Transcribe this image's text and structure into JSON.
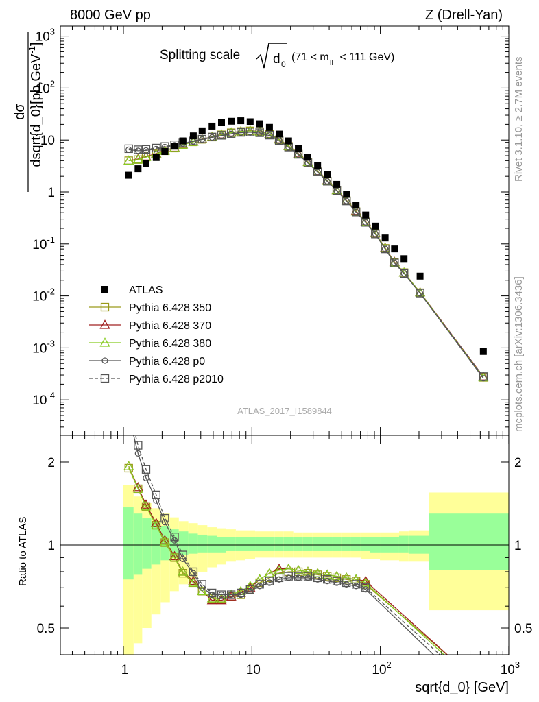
{
  "header": {
    "left": "8000 GeV pp",
    "right": "Z (Drell-Yan)"
  },
  "side_labels": {
    "rivet": "Rivet 3.1.10, ≥ 2.7M events",
    "mcplots": "mcplots.cern.ch [arXiv:1306.3436]"
  },
  "chart_data": [
    {
      "type": "scatter",
      "title": "Splitting scale √d0 (71 < m_ll < 111 GeV)",
      "title_parts": {
        "text": "Splitting scale",
        "symbol": "d",
        "subscript": "0",
        "range": "(71 < m",
        "range_sub": "ll",
        "range_end": " < 111 GeV)"
      },
      "ylabel": "dσ/dsqrt{d_0} [pb,GeV^-1]",
      "ylabel_parts": {
        "numerator": "dσ",
        "denominator": "dsqrt{d_0}",
        "unit": "[pb,GeV",
        "unit_exp": "-1",
        "unit_end": "]"
      },
      "xlabel": "sqrt{d_0} [GeV]",
      "xscale": "log",
      "yscale": "log",
      "xlim": [
        0.35,
        1000
      ],
      "ylim": [
        2.5e-05,
        1500
      ],
      "x_ticks": [
        "1",
        "10",
        "10^2",
        "10^3"
      ],
      "y_ticks": [
        "10^-4",
        "10^-3",
        "10^-2",
        "10^-1",
        "1",
        "10",
        "10^2",
        "10^3"
      ],
      "watermark": "ATLAS_2017_I1589844",
      "legend_position": "lower-left",
      "series": [
        {
          "name": "ATLAS",
          "style": "filled-square",
          "color": "#000000",
          "x": [
            1.1,
            1.3,
            1.5,
            1.8,
            2.1,
            2.5,
            2.9,
            3.5,
            4.1,
            4.9,
            5.8,
            6.9,
            8.2,
            9.7,
            11.5,
            13.7,
            16.3,
            19.3,
            23.0,
            27.3,
            32.5,
            38.6,
            45.8,
            54.5,
            64.7,
            76.9,
            91.4,
            109,
            129,
            153,
            204,
            634
          ],
          "y": [
            2.1,
            2.8,
            3.5,
            4.6,
            6.0,
            7.6,
            9.6,
            12.0,
            15.0,
            18.5,
            21.5,
            23.0,
            23.5,
            22.5,
            20.5,
            17.5,
            13.0,
            9.6,
            6.9,
            4.7,
            3.2,
            2.15,
            1.4,
            0.9,
            0.56,
            0.36,
            0.22,
            0.13,
            0.08,
            0.052,
            0.024,
            0.00085
          ]
        },
        {
          "name": "Pythia 6.428 350",
          "style": "open-square-line",
          "color": "#9a9a1a",
          "x": [
            1.1,
            1.3,
            1.5,
            1.8,
            2.1,
            2.5,
            2.9,
            3.5,
            4.1,
            4.9,
            5.8,
            6.9,
            8.2,
            9.7,
            11.5,
            13.7,
            16.3,
            19.3,
            23.0,
            27.3,
            32.5,
            38.6,
            45.8,
            54.5,
            64.7,
            76.9,
            91.4,
            109,
            129,
            153,
            204,
            634
          ],
          "y": [
            4.0,
            4.2,
            4.7,
            5.4,
            6.2,
            7.0,
            8.1,
            9.2,
            10.3,
            11.4,
            12.6,
            13.8,
            14.6,
            15.0,
            14.5,
            12.9,
            10.1,
            7.5,
            5.4,
            3.7,
            2.45,
            1.62,
            1.06,
            0.68,
            0.42,
            0.265,
            0.158,
            0.082,
            0.044,
            0.028,
            0.0115,
            0.00027
          ]
        },
        {
          "name": "Pythia 6.428 370",
          "style": "open-triangle-line",
          "color": "#a02020",
          "x": [
            1.1,
            1.3,
            1.5,
            1.8,
            2.1,
            2.5,
            2.9,
            3.5,
            4.1,
            4.9,
            5.8,
            6.9,
            8.2,
            9.7,
            11.5,
            13.7,
            16.3,
            19.3,
            23.0,
            27.3,
            32.5,
            38.6,
            45.8,
            54.5,
            64.7,
            76.9,
            91.4,
            109,
            129,
            153,
            204,
            634
          ],
          "y": [
            4.0,
            4.3,
            4.8,
            5.5,
            6.3,
            7.1,
            8.2,
            9.3,
            10.4,
            11.5,
            12.7,
            13.9,
            14.7,
            15.1,
            14.6,
            13.0,
            10.3,
            7.7,
            5.5,
            3.8,
            2.5,
            1.65,
            1.08,
            0.69,
            0.43,
            0.27,
            0.162,
            0.084,
            0.045,
            0.028,
            0.0117,
            0.00028
          ]
        },
        {
          "name": "Pythia 6.428 380",
          "style": "open-triangle-line",
          "color": "#88cc22",
          "x": [
            1.1,
            1.3,
            1.5,
            1.8,
            2.1,
            2.5,
            2.9,
            3.5,
            4.1,
            4.9,
            5.8,
            6.9,
            8.2,
            9.7,
            11.5,
            13.7,
            16.3,
            19.3,
            23.0,
            27.3,
            32.5,
            38.6,
            45.8,
            54.5,
            64.7,
            76.9,
            91.4,
            109,
            129,
            153,
            204,
            634
          ],
          "y": [
            4.0,
            4.2,
            4.7,
            5.4,
            6.2,
            7.0,
            8.1,
            9.2,
            10.3,
            11.4,
            12.6,
            13.8,
            14.6,
            15.0,
            14.5,
            12.9,
            10.2,
            7.6,
            5.4,
            3.75,
            2.48,
            1.63,
            1.07,
            0.68,
            0.42,
            0.266,
            0.16,
            0.083,
            0.044,
            0.028,
            0.0116,
            0.00027
          ]
        },
        {
          "name": "Pythia 6.428 p0",
          "style": "open-circle-line",
          "color": "#555555",
          "x": [
            1.1,
            1.3,
            1.5,
            1.8,
            2.1,
            2.5,
            2.9,
            3.5,
            4.1,
            4.9,
            5.8,
            6.9,
            8.2,
            9.7,
            11.5,
            13.7,
            16.3,
            19.3,
            23.0,
            27.3,
            32.5,
            38.6,
            45.8,
            54.5,
            64.7,
            76.9,
            91.4,
            109,
            129,
            153,
            204,
            634
          ],
          "y": [
            6.5,
            6.2,
            6.3,
            6.7,
            7.3,
            7.9,
            8.6,
            9.4,
            10.2,
            11.2,
            12.1,
            13.1,
            13.8,
            14.1,
            13.6,
            12.2,
            9.6,
            7.2,
            5.2,
            3.6,
            2.4,
            1.6,
            1.05,
            0.67,
            0.41,
            0.26,
            0.155,
            0.08,
            0.043,
            0.027,
            0.0112,
            0.00026
          ]
        },
        {
          "name": "Pythia 6.428 p2010",
          "style": "open-square-dashed",
          "color": "#555555",
          "x": [
            1.1,
            1.3,
            1.5,
            1.8,
            2.1,
            2.5,
            2.9,
            3.5,
            4.1,
            4.9,
            5.8,
            6.9,
            8.2,
            9.7,
            11.5,
            13.7,
            16.3,
            19.3,
            23.0,
            27.3,
            32.5,
            38.6,
            45.8,
            54.5,
            64.7,
            76.9,
            91.4,
            109,
            129,
            153,
            204,
            634
          ],
          "y": [
            6.8,
            6.5,
            6.6,
            7.0,
            7.5,
            8.1,
            8.8,
            9.6,
            10.4,
            11.4,
            12.3,
            13.3,
            14.0,
            14.3,
            13.8,
            12.4,
            9.8,
            7.3,
            5.3,
            3.65,
            2.43,
            1.61,
            1.06,
            0.67,
            0.41,
            0.26,
            0.155,
            0.08,
            0.043,
            0.027,
            0.0113,
            0.00028
          ]
        }
      ]
    },
    {
      "type": "line",
      "ylabel": "Ratio to ATLAS",
      "xscale": "log",
      "xlim": [
        0.35,
        1000
      ],
      "ylim": [
        0.4,
        2.35
      ],
      "y_ticks": [
        "0.5",
        "1",
        "2"
      ],
      "reference_line": 1,
      "bands": {
        "bin_edges": [
          1.0,
          1.2,
          1.4,
          1.65,
          1.95,
          2.3,
          2.7,
          3.2,
          3.8,
          4.5,
          5.35,
          6.3,
          7.5,
          8.9,
          10.6,
          12.6,
          15.0,
          17.7,
          21.0,
          25.0,
          29.7,
          35.3,
          42.0,
          49.8,
          59.2,
          70.3,
          83.5,
          99.3,
          118,
          140,
          166,
          240,
          1000
        ],
        "inner_up": [
          1.37,
          1.3,
          1.25,
          1.21,
          1.17,
          1.14,
          1.12,
          1.1,
          1.09,
          1.08,
          1.07,
          1.07,
          1.07,
          1.07,
          1.07,
          1.07,
          1.07,
          1.07,
          1.07,
          1.07,
          1.07,
          1.07,
          1.07,
          1.07,
          1.07,
          1.07,
          1.07,
          1.07,
          1.07,
          1.08,
          1.08,
          1.3
        ],
        "inner_down": [
          0.75,
          0.78,
          0.82,
          0.85,
          0.88,
          0.9,
          0.92,
          0.93,
          0.94,
          0.94,
          0.94,
          0.95,
          0.95,
          0.95,
          0.95,
          0.95,
          0.95,
          0.95,
          0.95,
          0.95,
          0.95,
          0.95,
          0.95,
          0.95,
          0.95,
          0.95,
          0.94,
          0.94,
          0.94,
          0.94,
          0.93,
          0.81
        ],
        "outer_up": [
          1.65,
          1.5,
          1.42,
          1.36,
          1.3,
          1.26,
          1.22,
          1.2,
          1.18,
          1.16,
          1.15,
          1.14,
          1.13,
          1.13,
          1.12,
          1.12,
          1.12,
          1.12,
          1.11,
          1.11,
          1.11,
          1.11,
          1.11,
          1.11,
          1.11,
          1.11,
          1.11,
          1.11,
          1.11,
          1.12,
          1.13,
          1.55
        ],
        "outer_down": [
          0.37,
          0.44,
          0.5,
          0.56,
          0.62,
          0.68,
          0.72,
          0.76,
          0.8,
          0.83,
          0.85,
          0.87,
          0.88,
          0.89,
          0.9,
          0.9,
          0.9,
          0.9,
          0.9,
          0.9,
          0.9,
          0.9,
          0.9,
          0.9,
          0.9,
          0.89,
          0.89,
          0.88,
          0.88,
          0.87,
          0.87,
          0.58
        ],
        "inner_color": "#99ff99",
        "outer_color": "#ffff99"
      },
      "series": [
        {
          "name": "Pythia 6.428 350",
          "color": "#9a9a1a",
          "x": [
            1.1,
            1.3,
            1.5,
            1.8,
            2.1,
            2.5,
            2.9,
            3.5,
            4.1,
            4.9,
            5.8,
            6.9,
            8.2,
            9.7,
            11.5,
            13.7,
            16.3,
            19.3,
            23.0,
            27.3,
            32.5,
            38.6,
            45.8,
            54.5,
            64.7,
            76.9,
            400
          ],
          "y": [
            1.9,
            1.6,
            1.38,
            1.18,
            1.02,
            0.9,
            0.79,
            0.73,
            0.68,
            0.64,
            0.64,
            0.65,
            0.66,
            0.69,
            0.73,
            0.76,
            0.79,
            0.8,
            0.8,
            0.79,
            0.78,
            0.77,
            0.76,
            0.75,
            0.74,
            0.72,
            0.37
          ]
        },
        {
          "name": "Pythia 6.428 370",
          "color": "#a02020",
          "x": [
            1.1,
            1.3,
            1.5,
            1.8,
            2.1,
            2.5,
            2.9,
            3.5,
            4.1,
            4.9,
            5.8,
            6.9,
            8.2,
            9.7,
            11.5,
            13.7,
            16.3,
            19.3,
            23.0,
            27.3,
            32.5,
            38.6,
            45.8,
            54.5,
            64.7,
            76.9,
            400
          ],
          "y": [
            1.93,
            1.62,
            1.4,
            1.2,
            1.04,
            0.91,
            0.8,
            0.74,
            0.68,
            0.63,
            0.63,
            0.65,
            0.67,
            0.7,
            0.75,
            0.79,
            0.82,
            0.82,
            0.81,
            0.8,
            0.79,
            0.78,
            0.77,
            0.76,
            0.75,
            0.74,
            0.37
          ]
        },
        {
          "name": "Pythia 6.428 380",
          "color": "#88cc22",
          "x": [
            1.1,
            1.3,
            1.5,
            1.8,
            2.1,
            2.5,
            2.9,
            3.5,
            4.1,
            4.9,
            5.8,
            6.9,
            8.2,
            9.7,
            11.5,
            13.7,
            16.3,
            19.3,
            23.0,
            27.3,
            32.5,
            38.6,
            45.8,
            54.5,
            64.7,
            76.9,
            400
          ],
          "y": [
            1.93,
            1.6,
            1.38,
            1.18,
            1.03,
            0.9,
            0.8,
            0.73,
            0.68,
            0.64,
            0.64,
            0.66,
            0.68,
            0.71,
            0.75,
            0.79,
            0.81,
            0.82,
            0.81,
            0.8,
            0.79,
            0.78,
            0.77,
            0.76,
            0.75,
            0.73,
            0.36
          ]
        },
        {
          "name": "Pythia 6.428 p0",
          "color": "#555555",
          "x": [
            1.1,
            1.3,
            1.5,
            1.8,
            2.1,
            2.5,
            2.9,
            3.5,
            4.1,
            4.9,
            5.8,
            6.9,
            8.2,
            9.7,
            11.5,
            13.7,
            16.3,
            19.3,
            23.0,
            27.3,
            32.5,
            38.6,
            45.8,
            54.5,
            64.7,
            76.9,
            400
          ],
          "y": [
            2.95,
            2.15,
            1.75,
            1.45,
            1.21,
            1.04,
            0.89,
            0.79,
            0.7,
            0.66,
            0.66,
            0.66,
            0.66,
            0.68,
            0.71,
            0.73,
            0.75,
            0.76,
            0.76,
            0.76,
            0.75,
            0.74,
            0.73,
            0.72,
            0.71,
            0.69,
            0.33
          ]
        },
        {
          "name": "Pythia 6.428 p2010",
          "color": "#555555",
          "dashed": true,
          "x": [
            1.1,
            1.3,
            1.5,
            1.8,
            2.1,
            2.5,
            2.9,
            3.5,
            4.1,
            4.9,
            5.8,
            6.9,
            8.2,
            9.7,
            11.5,
            13.7,
            16.3,
            19.3,
            23.0,
            27.3,
            32.5,
            38.6,
            45.8,
            54.5,
            64.7,
            76.9,
            400
          ],
          "y": [
            3.1,
            2.3,
            1.88,
            1.52,
            1.25,
            1.07,
            0.92,
            0.8,
            0.72,
            0.67,
            0.66,
            0.66,
            0.67,
            0.69,
            0.72,
            0.74,
            0.76,
            0.77,
            0.77,
            0.77,
            0.76,
            0.75,
            0.74,
            0.73,
            0.72,
            0.7,
            0.35
          ]
        }
      ]
    }
  ]
}
